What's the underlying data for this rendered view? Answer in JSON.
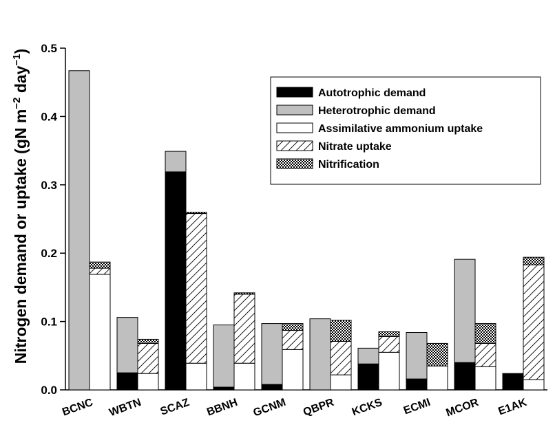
{
  "chart_data": {
    "type": "bar",
    "categories": [
      "BCNC",
      "WBTN",
      "SCAZ",
      "BBNH",
      "GCNM",
      "QBPR",
      "KCKS",
      "ECMI",
      "MCOR",
      "E1AK"
    ],
    "ylabel": "Nitrogen demand or uptake (gN m",
    "ylabel_sup1": "−2",
    "ylabel_mid": " day",
    "ylabel_sup2": "−1",
    "ylabel_end": ")",
    "ylim": [
      0,
      0.5
    ],
    "yticks": [
      "0.0",
      "0.1",
      "0.2",
      "0.3",
      "0.4",
      "0.5"
    ],
    "stacks": {
      "demand": [
        "autotrophic",
        "heterotrophic"
      ],
      "uptake": [
        "ammonium",
        "nitrate",
        "nitrification"
      ]
    },
    "series": [
      {
        "key": "autotrophic",
        "name": "Autotrophic demand",
        "fill": "black",
        "values": [
          0.0,
          0.025,
          0.319,
          0.004,
          0.008,
          0.0,
          0.038,
          0.016,
          0.04,
          0.024
        ]
      },
      {
        "key": "heterotrophic",
        "name": "Heterotrophic demand",
        "fill": "gray",
        "values": [
          0.467,
          0.081,
          0.03,
          0.091,
          0.089,
          0.104,
          0.023,
          0.068,
          0.151,
          0.0
        ]
      },
      {
        "key": "ammonium",
        "name": "Assimilative ammonium uptake",
        "fill": "white",
        "values": [
          0.169,
          0.024,
          0.039,
          0.039,
          0.059,
          0.022,
          0.055,
          0.035,
          0.034,
          0.015
        ]
      },
      {
        "key": "nitrate",
        "name": "Nitrate uptake",
        "fill": "hatch",
        "values": [
          0.009,
          0.044,
          0.219,
          0.101,
          0.028,
          0.049,
          0.023,
          0.0,
          0.034,
          0.168
        ]
      },
      {
        "key": "nitrification",
        "name": "Nitrification",
        "fill": "crosshatch",
        "values": [
          0.009,
          0.006,
          0.002,
          0.002,
          0.01,
          0.031,
          0.007,
          0.033,
          0.029,
          0.011
        ]
      }
    ],
    "legend_position": "top-right",
    "grid": false
  }
}
